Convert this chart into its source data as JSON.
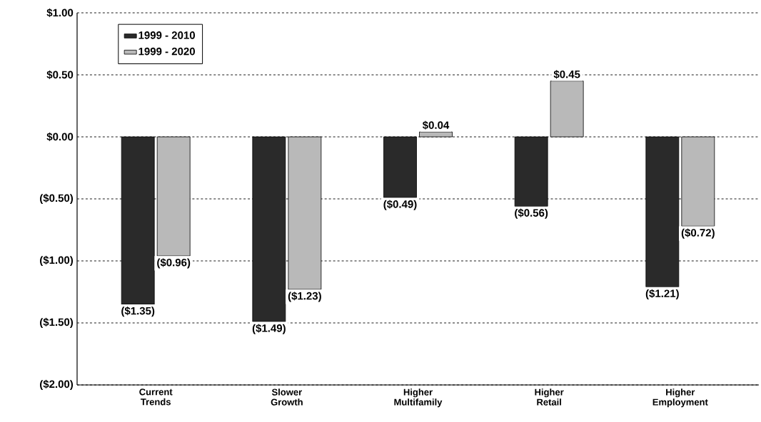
{
  "chart_data": {
    "type": "bar",
    "categories": [
      "Current Trends",
      "Slower Growth",
      "Higher Multifamily",
      "Higher Retail",
      "Higher Employment"
    ],
    "series": [
      {
        "name": "1999 - 2010",
        "color": "#2a2a2a",
        "values": [
          -1.35,
          -1.49,
          -0.49,
          -0.56,
          -1.21
        ],
        "value_labels": [
          "($1.35)",
          "($1.49)",
          "($0.49)",
          "($0.56)",
          "($1.21)"
        ]
      },
      {
        "name": "1999 - 2020",
        "color": "#b9b9b9",
        "values": [
          -0.96,
          -1.23,
          0.04,
          0.45,
          -0.72
        ],
        "value_labels": [
          "($0.96)",
          "($1.23)",
          "$0.04",
          "$0.45",
          "($0.72)"
        ]
      }
    ],
    "ylim": [
      -2,
      1
    ],
    "yticks": [
      {
        "value": 1,
        "label": "$1.00"
      },
      {
        "value": 0.5,
        "label": "$0.50"
      },
      {
        "value": 0,
        "label": "$0.00"
      },
      {
        "value": -0.5,
        "label": "($0.50)"
      },
      {
        "value": -1,
        "label": "($1.00)"
      },
      {
        "value": -1.5,
        "label": "($1.50)"
      },
      {
        "value": -2,
        "label": "($2.00)"
      }
    ],
    "grid": "y",
    "legend": "top left"
  }
}
